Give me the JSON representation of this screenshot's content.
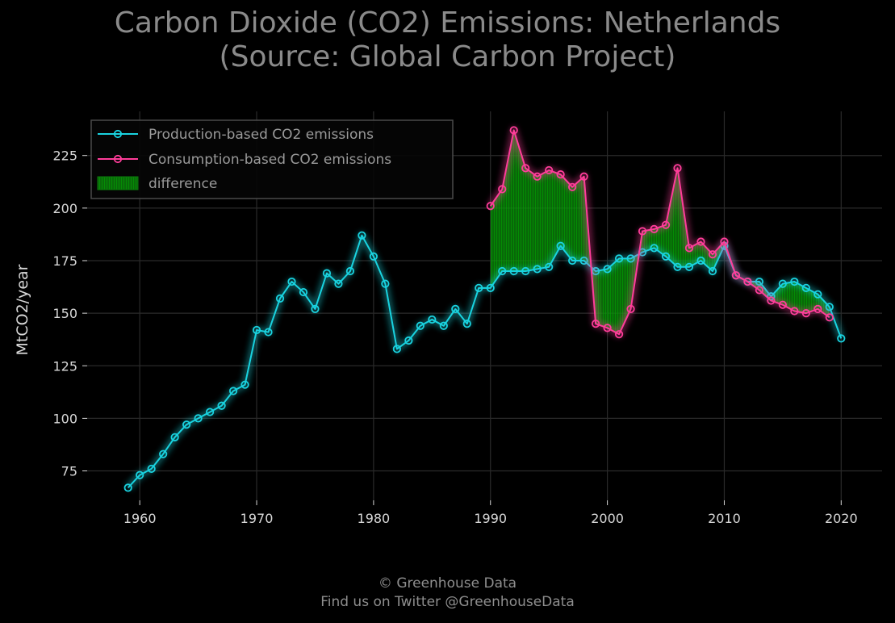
{
  "chart_data": {
    "type": "line",
    "title_lines": [
      "Carbon Dioxide (CO2) Emissions: Netherlands",
      "(Source: Global Carbon Project)"
    ],
    "ylabel": "MtCO2/year",
    "xlabel": "",
    "xlim": [
      1955.5,
      2023.5
    ],
    "ylim": [
      61,
      246
    ],
    "x_ticks": [
      1960,
      1970,
      1980,
      1990,
      2000,
      2010,
      2020
    ],
    "y_ticks": [
      75,
      100,
      125,
      150,
      175,
      200,
      225
    ],
    "grid": true,
    "legend_placement": "top-left",
    "series": [
      {
        "name": "Production-based CO2 emissions",
        "color": "#19d3e0",
        "x": [
          1959,
          1960,
          1961,
          1962,
          1963,
          1964,
          1965,
          1966,
          1967,
          1968,
          1969,
          1970,
          1971,
          1972,
          1973,
          1974,
          1975,
          1976,
          1977,
          1978,
          1979,
          1980,
          1981,
          1982,
          1983,
          1984,
          1985,
          1986,
          1987,
          1988,
          1989,
          1990,
          1991,
          1992,
          1993,
          1994,
          1995,
          1996,
          1997,
          1998,
          1999,
          2000,
          2001,
          2002,
          2003,
          2004,
          2005,
          2006,
          2007,
          2008,
          2009,
          2010,
          2011,
          2012,
          2013,
          2014,
          2015,
          2016,
          2017,
          2018,
          2019,
          2020
        ],
        "values": [
          67,
          73,
          76,
          83,
          91,
          97,
          100,
          103,
          106,
          113,
          116,
          142,
          141,
          157,
          165,
          160,
          152,
          169,
          164,
          170,
          187,
          177,
          164,
          133,
          137,
          144,
          147,
          144,
          152,
          145,
          162,
          162,
          170,
          170,
          170,
          171,
          172,
          182,
          175,
          175,
          170,
          171,
          176,
          176,
          179,
          181,
          177,
          172,
          172,
          175,
          170,
          182,
          168,
          165,
          165,
          158,
          164,
          165,
          162,
          159,
          153,
          138
        ]
      },
      {
        "name": "Consumption-based CO2 emissions",
        "color": "#ff3d9a",
        "x": [
          1990,
          1991,
          1992,
          1993,
          1994,
          1995,
          1996,
          1997,
          1998,
          1999,
          2000,
          2001,
          2002,
          2003,
          2004,
          2005,
          2006,
          2007,
          2008,
          2009,
          2010,
          2011,
          2012,
          2013,
          2014,
          2015,
          2016,
          2017,
          2018,
          2019
        ],
        "values": [
          201,
          209,
          237,
          219,
          215,
          218,
          216,
          210,
          215,
          145,
          143,
          140,
          152,
          189,
          190,
          192,
          219,
          181,
          184,
          178,
          184,
          168,
          165,
          161,
          156,
          154,
          151,
          150,
          152,
          148
        ]
      }
    ],
    "fill": {
      "name": "difference",
      "color": "#0a8a0a"
    }
  },
  "footer": {
    "line1": "© Greenhouse Data",
    "line2": "Find us on Twitter @GreenhouseData"
  }
}
